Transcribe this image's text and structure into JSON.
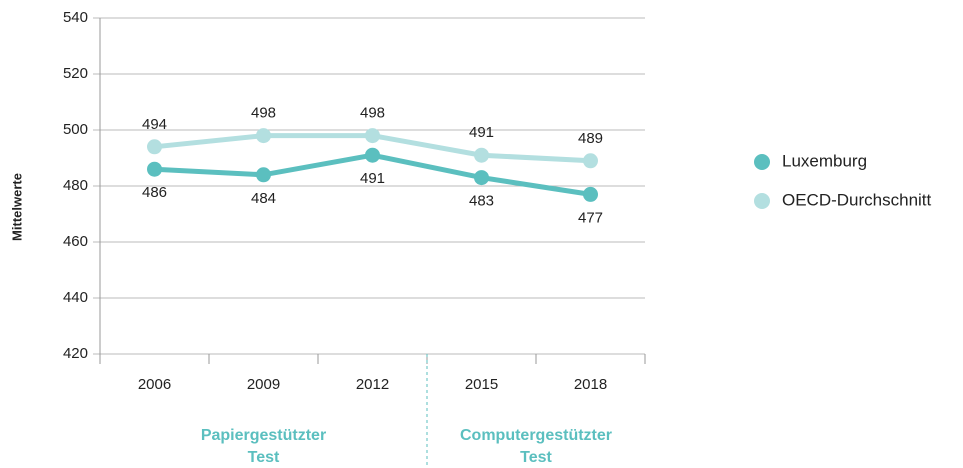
{
  "chart_data": {
    "type": "line",
    "y_label": "Mittelwerte",
    "categories": [
      "2006",
      "2009",
      "2012",
      "2015",
      "2018"
    ],
    "series": [
      {
        "name": "Luxemburg",
        "color": "#5bbfbf",
        "values": [
          486,
          484,
          491,
          483,
          477
        ]
      },
      {
        "name": "OECD-Durchschnitt",
        "color": "#b3dfe0",
        "values": [
          494,
          498,
          498,
          491,
          489
        ]
      }
    ],
    "ylim": [
      420,
      540
    ],
    "yticks": [
      420,
      440,
      460,
      480,
      500,
      520,
      540
    ],
    "grid": true,
    "legend": "right",
    "annotations": [
      {
        "lines": [
          "Papiergestützter",
          "Test"
        ]
      },
      {
        "lines": [
          "Computergestützter",
          "Test"
        ]
      }
    ]
  }
}
